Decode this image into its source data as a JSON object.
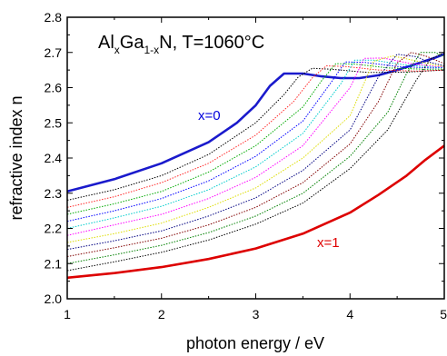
{
  "chart_data": {
    "type": "line",
    "title_parts": {
      "a": "Al",
      "a_sub": "x",
      "b": "Ga",
      "b_sub": "1-x",
      "c": "N, T=1060°C"
    },
    "xlabel": "photon energy / eV",
    "ylabel": "refractive index n",
    "xlim": [
      1,
      5
    ],
    "ylim": [
      2.0,
      2.8
    ],
    "xticks": [
      "1",
      "2",
      "3",
      "4",
      "5"
    ],
    "yticks": [
      "2.0",
      "2.1",
      "2.2",
      "2.3",
      "2.4",
      "2.5",
      "2.6",
      "2.7",
      "2.8"
    ],
    "grid": false,
    "annotations": [
      {
        "text": "x=0",
        "color": "#0000dd"
      },
      {
        "text": "x=1",
        "color": "#e00000"
      }
    ],
    "series": [
      {
        "color": "#1a1acc",
        "style": "solid",
        "x": [
          1.0,
          1.5,
          2.0,
          2.5,
          2.8,
          3.0,
          3.15,
          3.3,
          3.5,
          3.7,
          3.9,
          4.1,
          4.3,
          4.5,
          4.7,
          4.9,
          5.0
        ],
        "y": [
          2.305,
          2.34,
          2.385,
          2.445,
          2.5,
          2.55,
          2.605,
          2.64,
          2.64,
          2.632,
          2.627,
          2.627,
          2.635,
          2.65,
          2.667,
          2.685,
          2.695
        ]
      },
      {
        "color": "#000000",
        "style": "dotted",
        "x": [
          1.0,
          1.5,
          2.0,
          2.5,
          3.0,
          3.3,
          3.45,
          3.6,
          3.8,
          4.2,
          4.6,
          5.0
        ],
        "y": [
          2.28,
          2.31,
          2.35,
          2.41,
          2.5,
          2.58,
          2.63,
          2.655,
          2.652,
          2.643,
          2.644,
          2.65
        ]
      },
      {
        "color": "#ff2a2a",
        "style": "dotted",
        "x": [
          1.0,
          1.5,
          2.0,
          2.5,
          3.0,
          3.4,
          3.6,
          3.75,
          3.95,
          4.3,
          4.7,
          5.0
        ],
        "y": [
          2.26,
          2.29,
          2.33,
          2.385,
          2.465,
          2.56,
          2.628,
          2.662,
          2.66,
          2.65,
          2.647,
          2.65
        ]
      },
      {
        "color": "#00aa00",
        "style": "dotted",
        "x": [
          1.0,
          1.5,
          2.0,
          2.5,
          3.0,
          3.5,
          3.7,
          3.85,
          4.05,
          4.4,
          4.8,
          5.0
        ],
        "y": [
          2.24,
          2.27,
          2.305,
          2.36,
          2.435,
          2.545,
          2.62,
          2.668,
          2.667,
          2.656,
          2.652,
          2.653
        ]
      },
      {
        "color": "#0000ff",
        "style": "dotted",
        "x": [
          1.0,
          1.5,
          2.0,
          2.5,
          3.0,
          3.5,
          3.8,
          3.95,
          4.15,
          4.5,
          4.85,
          5.0
        ],
        "y": [
          2.22,
          2.25,
          2.285,
          2.335,
          2.405,
          2.505,
          2.615,
          2.673,
          2.672,
          2.66,
          2.656,
          2.657
        ]
      },
      {
        "color": "#00cccc",
        "style": "dotted",
        "x": [
          1.0,
          1.5,
          2.0,
          2.5,
          3.0,
          3.5,
          3.9,
          4.05,
          4.25,
          4.6,
          4.9,
          5.0
        ],
        "y": [
          2.2,
          2.23,
          2.263,
          2.31,
          2.375,
          2.47,
          2.61,
          2.678,
          2.678,
          2.664,
          2.658,
          2.658
        ]
      },
      {
        "color": "#ff00ff",
        "style": "dotted",
        "x": [
          1.0,
          1.5,
          2.0,
          2.5,
          3.0,
          3.5,
          4.0,
          4.15,
          4.35,
          4.65,
          4.9,
          5.0
        ],
        "y": [
          2.18,
          2.21,
          2.24,
          2.285,
          2.345,
          2.435,
          2.6,
          2.683,
          2.684,
          2.668,
          2.66,
          2.659
        ]
      },
      {
        "color": "#dddd00",
        "style": "dotted",
        "x": [
          1.0,
          1.5,
          2.0,
          2.5,
          3.0,
          3.5,
          4.0,
          4.25,
          4.45,
          4.7,
          4.9,
          5.0
        ],
        "y": [
          2.16,
          2.185,
          2.215,
          2.26,
          2.315,
          2.4,
          2.52,
          2.675,
          2.69,
          2.676,
          2.664,
          2.66
        ]
      },
      {
        "color": "#000080",
        "style": "dotted",
        "x": [
          1.0,
          1.5,
          2.0,
          2.5,
          3.0,
          3.5,
          4.0,
          4.3,
          4.5,
          4.7,
          4.85,
          5.0
        ],
        "y": [
          2.14,
          2.165,
          2.193,
          2.235,
          2.287,
          2.365,
          2.48,
          2.63,
          2.695,
          2.688,
          2.672,
          2.662
        ]
      },
      {
        "color": "#800000",
        "style": "dotted",
        "x": [
          1.0,
          1.5,
          2.0,
          2.5,
          3.0,
          3.5,
          4.0,
          4.3,
          4.5,
          4.65,
          4.8,
          5.0
        ],
        "y": [
          2.12,
          2.145,
          2.172,
          2.21,
          2.26,
          2.33,
          2.44,
          2.56,
          2.67,
          2.7,
          2.69,
          2.668
        ]
      },
      {
        "color": "#008000",
        "style": "dotted",
        "x": [
          1.0,
          1.5,
          2.0,
          2.5,
          3.0,
          3.5,
          4.0,
          4.4,
          4.6,
          4.75,
          4.9,
          5.0
        ],
        "y": [
          2.1,
          2.125,
          2.152,
          2.188,
          2.235,
          2.3,
          2.405,
          2.53,
          2.64,
          2.7,
          2.7,
          2.688
        ]
      },
      {
        "color": "#000000",
        "style": "dotted",
        "x": [
          1.0,
          1.5,
          2.0,
          2.5,
          3.0,
          3.5,
          4.0,
          4.4,
          4.7,
          4.85,
          5.0
        ],
        "y": [
          2.08,
          2.105,
          2.132,
          2.167,
          2.212,
          2.272,
          2.37,
          2.48,
          2.62,
          2.68,
          2.7
        ]
      },
      {
        "color": "#dd0000",
        "style": "solid",
        "x": [
          1.0,
          1.5,
          2.0,
          2.5,
          3.0,
          3.5,
          4.0,
          4.3,
          4.6,
          4.8,
          5.0
        ],
        "y": [
          2.06,
          2.073,
          2.09,
          2.113,
          2.143,
          2.185,
          2.245,
          2.295,
          2.35,
          2.395,
          2.435
        ]
      }
    ]
  }
}
